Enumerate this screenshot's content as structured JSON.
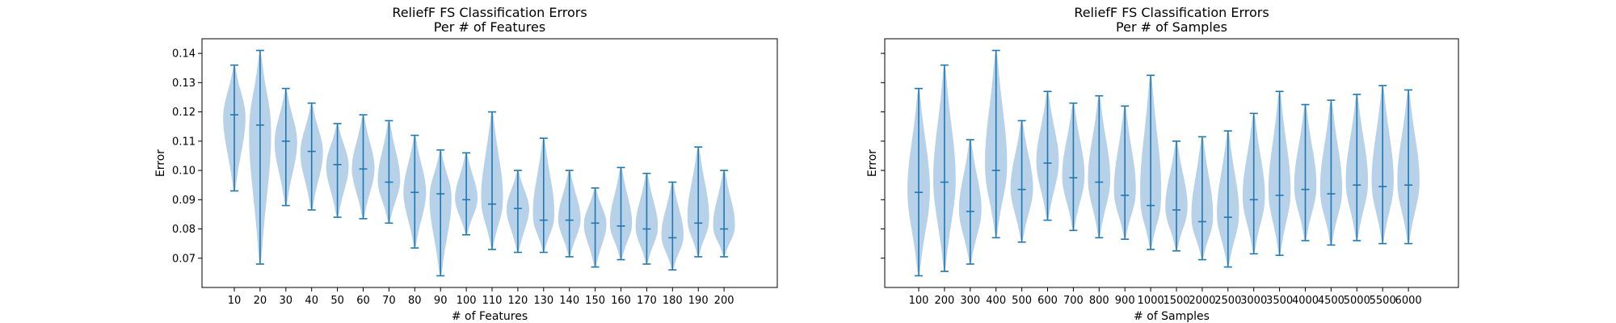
{
  "chart_data": [
    {
      "type": "violin",
      "title_line1": "ReliefF FS Classification Errors",
      "title_line2": "Per # of Features",
      "xlabel": "# of Features",
      "ylabel": "Error",
      "ylim": [
        0.06,
        0.145
      ],
      "yticks": [
        "0.07",
        "0.08",
        "0.09",
        "0.10",
        "0.11",
        "0.12",
        "0.13",
        "0.14"
      ],
      "show_ytick_labels": true,
      "color": "#1f77b4",
      "body_color": "#a9c9e4",
      "categories": [
        "10",
        "20",
        "30",
        "40",
        "50",
        "60",
        "70",
        "80",
        "90",
        "100",
        "110",
        "120",
        "130",
        "140",
        "150",
        "160",
        "170",
        "180",
        "190",
        "200"
      ],
      "series": [
        {
          "min": 0.093,
          "median": 0.119,
          "max": 0.136
        },
        {
          "min": 0.068,
          "median": 0.1155,
          "max": 0.141
        },
        {
          "min": 0.088,
          "median": 0.11,
          "max": 0.128
        },
        {
          "min": 0.0865,
          "median": 0.1065,
          "max": 0.123
        },
        {
          "min": 0.084,
          "median": 0.102,
          "max": 0.116
        },
        {
          "min": 0.0835,
          "median": 0.1005,
          "max": 0.119
        },
        {
          "min": 0.082,
          "median": 0.096,
          "max": 0.117
        },
        {
          "min": 0.0735,
          "median": 0.0925,
          "max": 0.112
        },
        {
          "min": 0.064,
          "median": 0.092,
          "max": 0.107
        },
        {
          "min": 0.078,
          "median": 0.09,
          "max": 0.106
        },
        {
          "min": 0.073,
          "median": 0.0885,
          "max": 0.12
        },
        {
          "min": 0.072,
          "median": 0.087,
          "max": 0.1
        },
        {
          "min": 0.072,
          "median": 0.083,
          "max": 0.111
        },
        {
          "min": 0.0705,
          "median": 0.083,
          "max": 0.1
        },
        {
          "min": 0.067,
          "median": 0.082,
          "max": 0.094
        },
        {
          "min": 0.0695,
          "median": 0.081,
          "max": 0.101
        },
        {
          "min": 0.068,
          "median": 0.08,
          "max": 0.099
        },
        {
          "min": 0.066,
          "median": 0.077,
          "max": 0.096
        },
        {
          "min": 0.0705,
          "median": 0.082,
          "max": 0.108
        },
        {
          "min": 0.0705,
          "median": 0.08,
          "max": 0.1
        }
      ]
    },
    {
      "type": "violin",
      "title_line1": "ReliefF FS Classification Errors",
      "title_line2": "Per # of Samples",
      "xlabel": "# of Samples",
      "ylabel": "Error",
      "ylim": [
        0.06,
        0.145
      ],
      "yticks": [
        "0.07",
        "0.08",
        "0.09",
        "0.10",
        "0.11",
        "0.12",
        "0.13",
        "0.14"
      ],
      "show_ytick_labels": false,
      "color": "#1f77b4",
      "body_color": "#a9c9e4",
      "categories": [
        "100",
        "200",
        "300",
        "400",
        "500",
        "600",
        "700",
        "800",
        "900",
        "1000",
        "1500",
        "2000",
        "2500",
        "3000",
        "3500",
        "4000",
        "4500",
        "5000",
        "5500",
        "6000"
      ],
      "series": [
        {
          "min": 0.064,
          "median": 0.0925,
          "max": 0.128
        },
        {
          "min": 0.0655,
          "median": 0.096,
          "max": 0.136
        },
        {
          "min": 0.068,
          "median": 0.086,
          "max": 0.1105
        },
        {
          "min": 0.077,
          "median": 0.1,
          "max": 0.141
        },
        {
          "min": 0.0755,
          "median": 0.0935,
          "max": 0.117
        },
        {
          "min": 0.083,
          "median": 0.1025,
          "max": 0.127
        },
        {
          "min": 0.0795,
          "median": 0.0975,
          "max": 0.123
        },
        {
          "min": 0.077,
          "median": 0.096,
          "max": 0.1255
        },
        {
          "min": 0.0765,
          "median": 0.0915,
          "max": 0.122
        },
        {
          "min": 0.073,
          "median": 0.088,
          "max": 0.1325
        },
        {
          "min": 0.0725,
          "median": 0.0865,
          "max": 0.11
        },
        {
          "min": 0.0695,
          "median": 0.0825,
          "max": 0.1115
        },
        {
          "min": 0.067,
          "median": 0.084,
          "max": 0.1135
        },
        {
          "min": 0.0715,
          "median": 0.09,
          "max": 0.1195
        },
        {
          "min": 0.071,
          "median": 0.0915,
          "max": 0.127
        },
        {
          "min": 0.076,
          "median": 0.0935,
          "max": 0.1225
        },
        {
          "min": 0.0745,
          "median": 0.092,
          "max": 0.124
        },
        {
          "min": 0.076,
          "median": 0.095,
          "max": 0.126
        },
        {
          "min": 0.075,
          "median": 0.0945,
          "max": 0.129
        },
        {
          "min": 0.075,
          "median": 0.095,
          "max": 0.1275
        }
      ]
    }
  ]
}
